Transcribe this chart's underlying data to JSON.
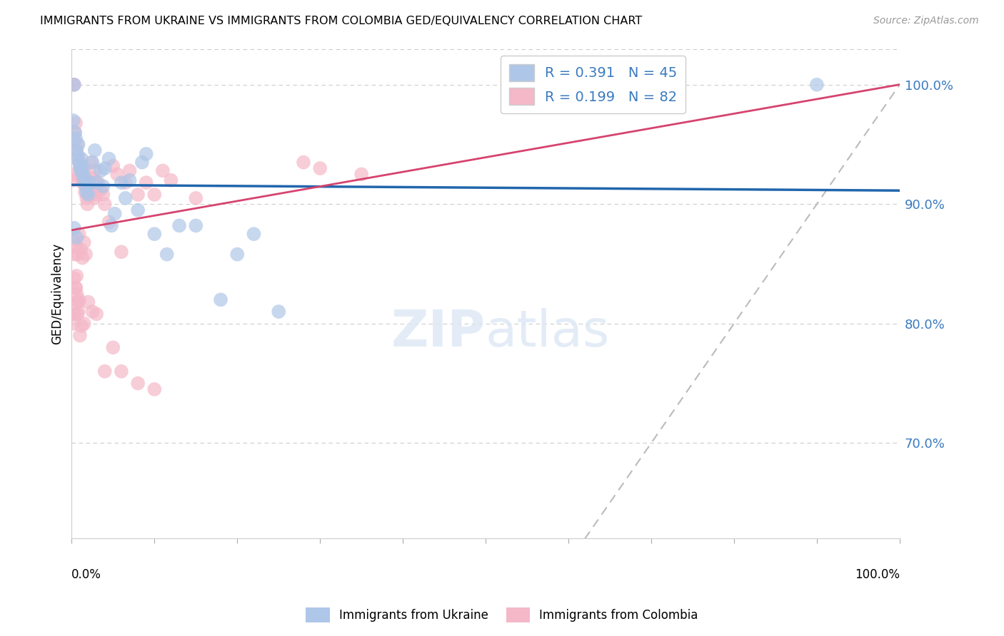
{
  "title": "IMMIGRANTS FROM UKRAINE VS IMMIGRANTS FROM COLOMBIA GED/EQUIVALENCY CORRELATION CHART",
  "source": "Source: ZipAtlas.com",
  "ylabel": "GED/Equivalency",
  "r_ukraine": 0.391,
  "n_ukraine": 45,
  "r_colombia": 0.199,
  "n_colombia": 82,
  "ukraine_color": "#aec6e8",
  "ukraine_line_color": "#2166ac",
  "colombia_color": "#f4b8c8",
  "colombia_line_color": "#d6436e",
  "ref_line_color": "#bbbbbb",
  "right_axis_color": "#3a7abf",
  "ytick_labels": [
    "70.0%",
    "80.0%",
    "90.0%",
    "100.0%"
  ],
  "ytick_values": [
    0.7,
    0.8,
    0.9,
    1.0
  ],
  "grid_color": "#cccccc",
  "ukraine_x": [
    0.002,
    0.004,
    0.005,
    0.006,
    0.007,
    0.008,
    0.009,
    0.01,
    0.011,
    0.012,
    0.013,
    0.014,
    0.015,
    0.016,
    0.017,
    0.018,
    0.02,
    0.022,
    0.025,
    0.028,
    0.03,
    0.035,
    0.038,
    0.04,
    0.045,
    0.048,
    0.052,
    0.06,
    0.065,
    0.07,
    0.08,
    0.085,
    0.09,
    0.1,
    0.115,
    0.13,
    0.15,
    0.18,
    0.2,
    0.22,
    0.25,
    0.003,
    0.006,
    0.9,
    0.003
  ],
  "ukraine_y": [
    0.97,
    0.96,
    0.955,
    0.945,
    0.94,
    0.95,
    0.935,
    0.932,
    0.928,
    0.938,
    0.925,
    0.93,
    0.92,
    0.922,
    0.915,
    0.91,
    0.908,
    0.918,
    0.935,
    0.945,
    0.918,
    0.928,
    0.915,
    0.93,
    0.938,
    0.882,
    0.892,
    0.918,
    0.905,
    0.92,
    0.895,
    0.935,
    0.942,
    0.875,
    0.858,
    0.882,
    0.882,
    0.82,
    0.858,
    0.875,
    0.81,
    0.88,
    0.872,
    1.0,
    1.0
  ],
  "colombia_x": [
    0.002,
    0.003,
    0.004,
    0.005,
    0.006,
    0.007,
    0.008,
    0.009,
    0.01,
    0.011,
    0.012,
    0.013,
    0.014,
    0.015,
    0.016,
    0.017,
    0.018,
    0.019,
    0.02,
    0.021,
    0.022,
    0.023,
    0.024,
    0.025,
    0.026,
    0.027,
    0.028,
    0.029,
    0.03,
    0.032,
    0.035,
    0.038,
    0.04,
    0.045,
    0.05,
    0.055,
    0.06,
    0.065,
    0.07,
    0.08,
    0.09,
    0.1,
    0.11,
    0.12,
    0.15,
    0.003,
    0.005,
    0.007,
    0.009,
    0.011,
    0.013,
    0.015,
    0.017,
    0.003,
    0.005,
    0.006,
    0.007,
    0.008,
    0.009,
    0.002,
    0.003,
    0.004,
    0.005,
    0.006,
    0.007,
    0.008,
    0.01,
    0.012,
    0.015,
    0.02,
    0.025,
    0.03,
    0.04,
    0.05,
    0.06,
    0.08,
    0.1,
    0.28,
    0.3,
    0.35,
    0.002,
    0.003
  ],
  "colombia_y": [
    0.92,
    0.925,
    0.96,
    0.968,
    0.945,
    0.95,
    0.94,
    0.935,
    0.93,
    0.928,
    0.922,
    0.918,
    0.93,
    0.92,
    0.91,
    0.915,
    0.905,
    0.9,
    0.91,
    0.912,
    0.918,
    0.908,
    0.935,
    0.922,
    0.915,
    0.905,
    0.928,
    0.918,
    0.908,
    0.918,
    0.912,
    0.908,
    0.9,
    0.885,
    0.932,
    0.925,
    0.86,
    0.918,
    0.928,
    0.908,
    0.918,
    0.908,
    0.928,
    0.92,
    0.905,
    0.87,
    0.865,
    0.858,
    0.875,
    0.862,
    0.855,
    0.868,
    0.858,
    0.838,
    0.83,
    0.825,
    0.818,
    0.81,
    0.82,
    0.8,
    0.808,
    0.858,
    0.83,
    0.84,
    0.808,
    0.818,
    0.79,
    0.798,
    0.8,
    0.818,
    0.81,
    0.808,
    0.76,
    0.78,
    0.76,
    0.75,
    0.745,
    0.935,
    0.93,
    0.925,
    1.0,
    1.0
  ]
}
